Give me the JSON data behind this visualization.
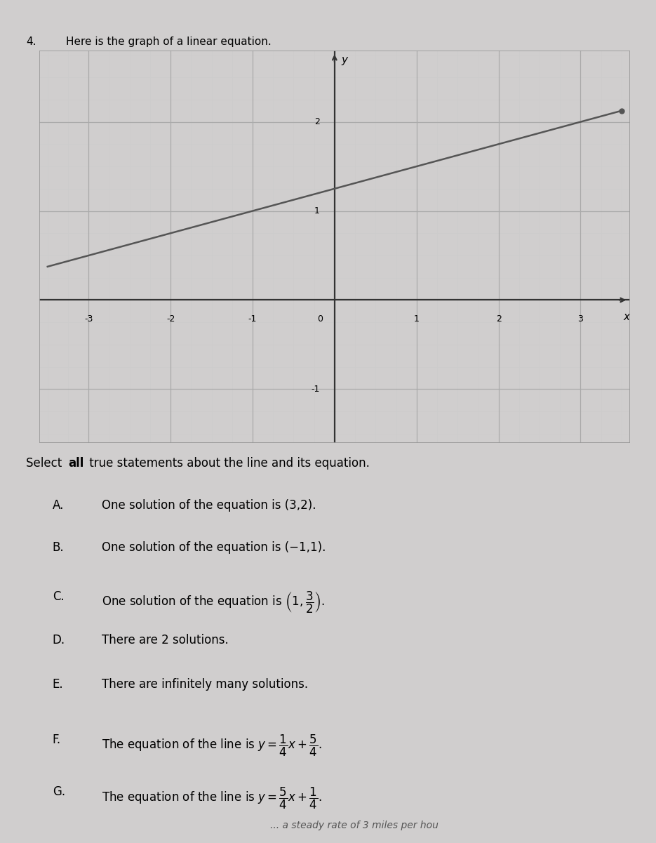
{
  "question_number": "4.",
  "question_text": "Here is the graph of a linear equation.",
  "slope": 0.25,
  "intercept": 1.25,
  "line_color": "#555555",
  "line_width": 1.8,
  "grid_minor_color": "#cccccc",
  "grid_major_color": "#aaaaaa",
  "axis_color": "#333333",
  "page_bg": "#d0cece",
  "graph_bg": "#e8e8e8",
  "x_ticks": [
    -3,
    -2,
    -1,
    0,
    1,
    2,
    3
  ],
  "y_ticks": [
    -1,
    0,
    1,
    2
  ],
  "fig_width": 9.35,
  "fig_height": 12.01,
  "select_text_parts": [
    "Select ",
    "all",
    " true statements about the line and its equation."
  ],
  "options_simple": [
    {
      "label": "A.",
      "text": "One solution of the equation is (3,2)."
    },
    {
      "label": "B.",
      "text": "One solution of the equation is (−1,1)."
    },
    {
      "label": "D.",
      "text": "There are 2 solutions."
    },
    {
      "label": "E.",
      "text": "There are infinitely many solutions."
    }
  ]
}
